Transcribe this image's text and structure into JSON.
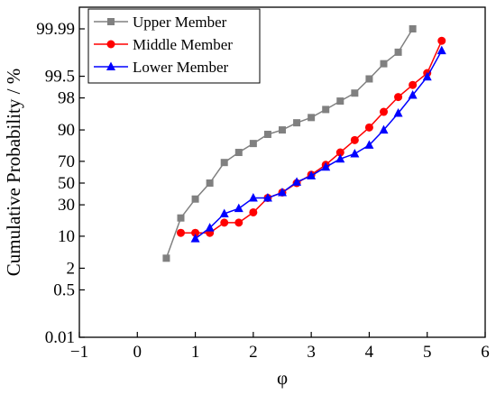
{
  "chart_data": {
    "type": "line",
    "xlabel": "φ",
    "ylabel": "Cumulative Probability / %",
    "xlim": [
      -1,
      6
    ],
    "x_ticks": [
      -1,
      0,
      1,
      2,
      3,
      4,
      5,
      6
    ],
    "x_tick_labels": [
      "−1",
      "0",
      "1",
      "2",
      "3",
      "4",
      "5",
      "6"
    ],
    "y_scale": "probability",
    "y_ticks": [
      0.01,
      0.5,
      2,
      10,
      30,
      50,
      70,
      90,
      98,
      99.5,
      99.99
    ],
    "y_tick_labels": [
      "0.01",
      "0.5",
      "2",
      "10",
      "30",
      "50",
      "70",
      "90",
      "98",
      "99.5",
      "99.99"
    ],
    "legend_position": "top-left",
    "series": [
      {
        "name": "Upper Member",
        "color": "#808080",
        "marker": "square",
        "x": [
          0.5,
          0.75,
          1.0,
          1.25,
          1.5,
          1.75,
          2.0,
          2.25,
          2.5,
          2.75,
          3.0,
          3.25,
          3.5,
          3.75,
          4.0,
          4.25,
          4.5,
          4.75
        ],
        "y": [
          3.5,
          20,
          35,
          50,
          69,
          77,
          83,
          88,
          90,
          92.7,
          94.3,
          96.2,
          97.6,
          98.5,
          99.4,
          99.8,
          99.92,
          99.99
        ]
      },
      {
        "name": "Middle Member",
        "color": "#ff0000",
        "marker": "circle",
        "x": [
          0.75,
          1.0,
          1.25,
          1.5,
          1.75,
          2.0,
          2.25,
          2.5,
          2.75,
          3.0,
          3.25,
          3.5,
          3.75,
          4.0,
          4.25,
          4.5,
          4.75,
          5.0,
          5.25
        ],
        "y": [
          11.5,
          11.5,
          11.5,
          17,
          17,
          24,
          36,
          41,
          50,
          58,
          67,
          77,
          85,
          91,
          95.7,
          98.1,
          99.1,
          99.6,
          99.97
        ]
      },
      {
        "name": "Lower Member",
        "color": "#0000ff",
        "marker": "triangle",
        "x": [
          1.0,
          1.25,
          1.5,
          1.75,
          2.0,
          2.25,
          2.5,
          2.75,
          3.0,
          3.25,
          3.5,
          3.75,
          4.0,
          4.25,
          4.5,
          4.75,
          5.0,
          5.25
        ],
        "y": [
          9,
          14,
          23,
          27,
          36,
          36,
          41,
          51,
          57,
          65,
          72,
          76,
          82,
          90,
          95.4,
          98.3,
          99.48,
          99.93
        ]
      }
    ]
  }
}
